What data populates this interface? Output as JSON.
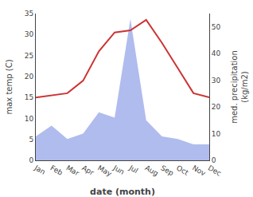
{
  "chart_data": {
    "type": "line",
    "categories": [
      "Jan",
      "Feb",
      "Mar",
      "Apr",
      "May",
      "Jun",
      "Jul",
      "Aug",
      "Sep",
      "Oct",
      "Nov",
      "Dec"
    ],
    "xlabel": "date (month)",
    "ylabel": "max temp (C)",
    "y2label": "med. precipitation\n(kg/m2)",
    "series": [
      {
        "type": "area",
        "axis": "y2",
        "color": "#b0bcee",
        "values": [
          9,
          13,
          8,
          10,
          18,
          16,
          53,
          15,
          9,
          8,
          6,
          6
        ]
      },
      {
        "type": "line",
        "color": "#cc3333",
        "values": [
          15,
          15.5,
          16,
          19,
          26,
          30.5,
          31,
          33.5,
          28,
          22,
          16,
          15
        ]
      }
    ],
    "ylim": [
      0,
      35
    ],
    "yticks": [
      0,
      5,
      10,
      15,
      20,
      25,
      30,
      35
    ],
    "y2lim": [
      0,
      55
    ],
    "y2ticks": [
      0,
      10,
      20,
      30,
      40,
      50
    ],
    "grid": false
  }
}
